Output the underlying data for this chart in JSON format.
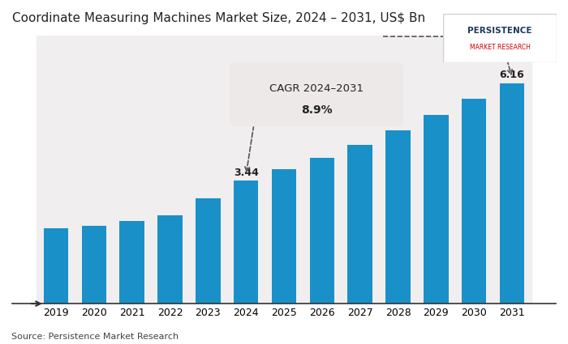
{
  "title": "Coordinate Measuring Machines Market Size, 2024 - 2031, US§ Bn",
  "title_text": "Coordinate Measuring Machines Market Size, 2024 – 2031, US$ Bn",
  "years": [
    2019,
    2020,
    2021,
    2022,
    2023,
    2024,
    2025,
    2026,
    2027,
    2028,
    2029,
    2030,
    2031
  ],
  "values": [
    2.11,
    2.17,
    2.3,
    2.47,
    2.95,
    3.44,
    3.75,
    4.08,
    4.44,
    4.84,
    5.27,
    5.73,
    6.16
  ],
  "bar_color": "#1a90c8",
  "bg_strip_color": "#f0eeee",
  "label_2024": "3.44",
  "label_2031": "6.16",
  "cagr_text_line1": "CAGR 2024–2031",
  "cagr_text_line2": "8.9%",
  "cagr_box_color": "#ede9e9",
  "source_text": "Source: Persistence Market Research",
  "ylim_max": 7.5,
  "logo_text_1": "PERSISTENCE",
  "logo_text_2": "MARKET RESEARCH"
}
